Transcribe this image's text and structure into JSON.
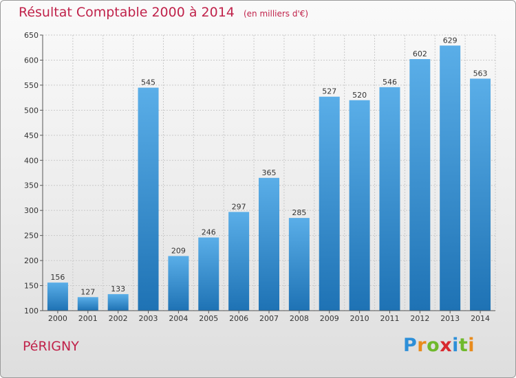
{
  "title": "Résultat Comptable 2000 à 2014",
  "subtitle": "(en milliers d'€)",
  "commune": "PéRIGNY",
  "logo": {
    "letters": [
      "P",
      "r",
      "o",
      "x",
      "i",
      "t",
      "i"
    ],
    "colors": [
      "#2d8fd8",
      "#e98b1c",
      "#6fb92c",
      "#d8292f",
      "#2d8fd8",
      "#6fb92c",
      "#e98b1c"
    ]
  },
  "colors": {
    "title": "#c0224a",
    "bar_top": "#5aaee8",
    "bar_bottom": "#1e72b4"
  },
  "chart_data": {
    "type": "bar",
    "categories": [
      "2000",
      "2001",
      "2002",
      "2003",
      "2004",
      "2005",
      "2006",
      "2007",
      "2008",
      "2009",
      "2010",
      "2011",
      "2012",
      "2013",
      "2014"
    ],
    "values": [
      156,
      127,
      133,
      545,
      209,
      246,
      297,
      365,
      285,
      527,
      520,
      546,
      602,
      629,
      563
    ],
    "ylim": [
      100,
      650
    ],
    "yticks": [
      100,
      150,
      200,
      250,
      300,
      350,
      400,
      450,
      500,
      550,
      600,
      650
    ],
    "grid": true
  }
}
